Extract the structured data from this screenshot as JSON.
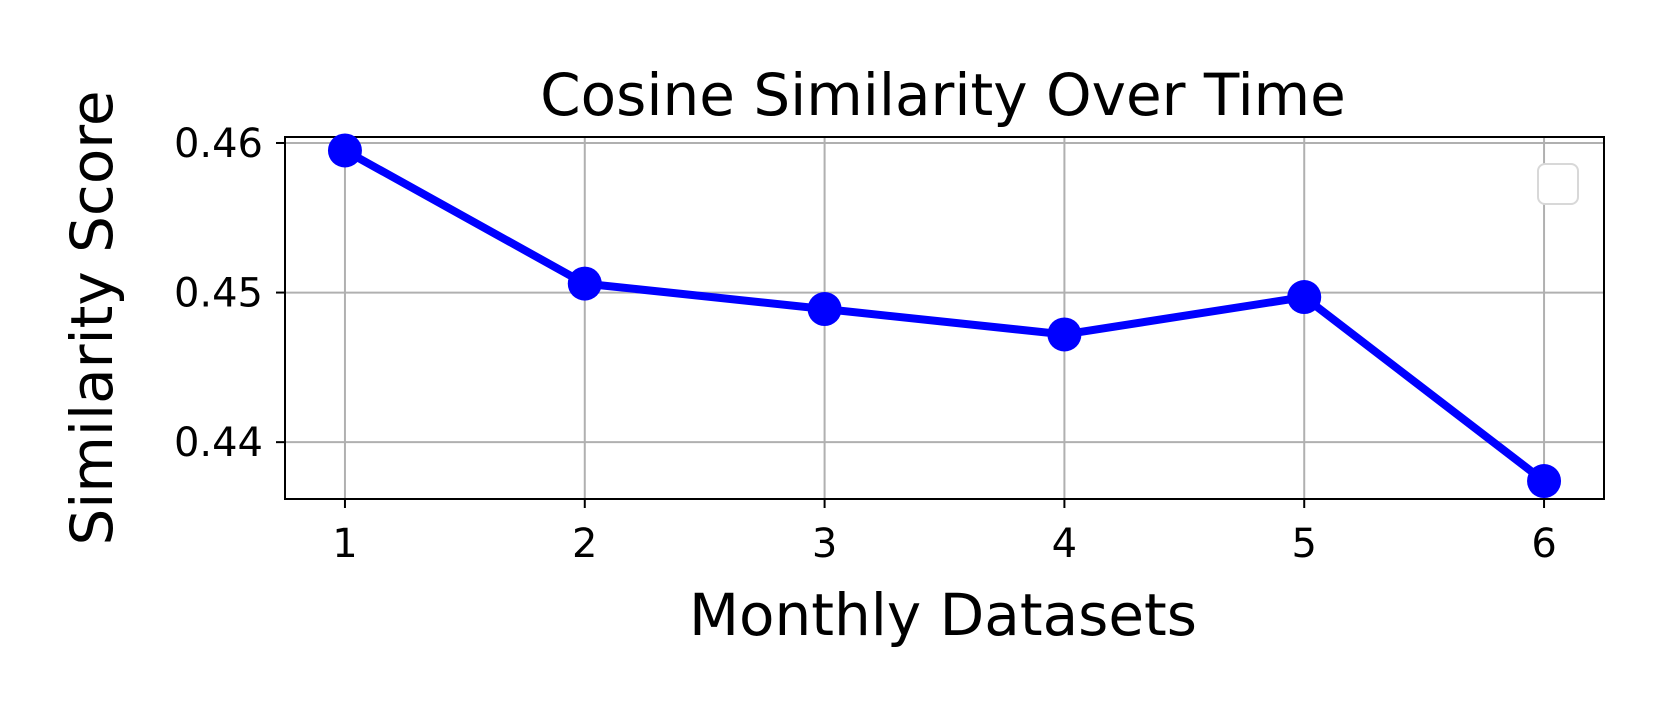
{
  "chart_data": {
    "type": "line",
    "title": "Cosine Similarity Over Time",
    "xlabel": "Monthly Datasets",
    "ylabel": "Similarity Score",
    "x": [
      1,
      2,
      3,
      4,
      5,
      6
    ],
    "xticks": [
      "1",
      "2",
      "3",
      "4",
      "5",
      "6"
    ],
    "xlim": [
      0.75,
      6.25
    ],
    "yticks": [
      "0.44",
      "0.45",
      "0.46"
    ],
    "ytick_values": [
      0.44,
      0.45,
      0.46
    ],
    "ylim": [
      0.4362,
      0.4604
    ],
    "grid": true,
    "legend": {
      "placement": "top-right",
      "entries": []
    },
    "series": [
      {
        "color": "#0000ff",
        "marker": "circle",
        "values": [
          0.4595,
          0.4506,
          0.4489,
          0.4472,
          0.4497,
          0.4374
        ]
      }
    ]
  }
}
